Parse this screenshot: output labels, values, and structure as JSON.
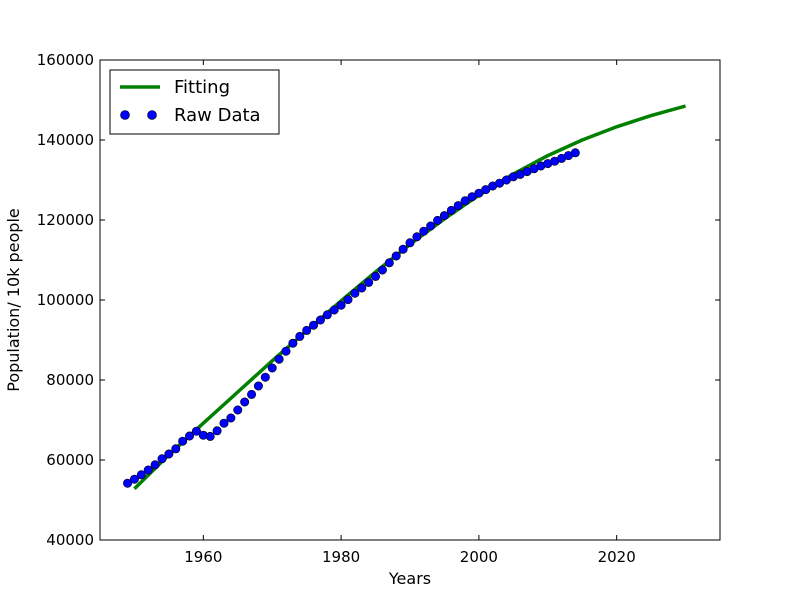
{
  "chart_data": {
    "type": "line",
    "title": "",
    "xlabel": "Years",
    "ylabel": "Population/ 10k people",
    "xlim": [
      1945,
      2035
    ],
    "ylim": [
      40000,
      160000
    ],
    "xticks": [
      1960,
      1980,
      2000,
      2020
    ],
    "yticks": [
      40000,
      60000,
      80000,
      100000,
      120000,
      140000,
      160000
    ],
    "grid": false,
    "legend_position": "top-left",
    "series": [
      {
        "name": "Fitting",
        "kind": "line",
        "color": "#008000",
        "x": [
          1950,
          1955,
          1960,
          1965,
          1970,
          1975,
          1980,
          1985,
          1990,
          1995,
          2000,
          2005,
          2010,
          2015,
          2020,
          2025,
          2030
        ],
        "y": [
          52800,
          61300,
          69200,
          77000,
          84800,
          92300,
          99800,
          107000,
          113900,
          120300,
          126200,
          131500,
          136100,
          140000,
          143300,
          146100,
          148500
        ]
      },
      {
        "name": "Raw Data",
        "kind": "scatter",
        "color": "#0000ff",
        "x": [
          1949,
          1950,
          1951,
          1952,
          1953,
          1954,
          1955,
          1956,
          1957,
          1958,
          1959,
          1960,
          1961,
          1962,
          1963,
          1964,
          1965,
          1966,
          1967,
          1968,
          1969,
          1970,
          1971,
          1972,
          1973,
          1974,
          1975,
          1976,
          1977,
          1978,
          1979,
          1980,
          1981,
          1982,
          1983,
          1984,
          1985,
          1986,
          1987,
          1988,
          1989,
          1990,
          1991,
          1992,
          1993,
          1994,
          1995,
          1996,
          1997,
          1998,
          1999,
          2000,
          2001,
          2002,
          2003,
          2004,
          2005,
          2006,
          2007,
          2008,
          2009,
          2010,
          2011,
          2012,
          2013,
          2014
        ],
        "y": [
          54200,
          55200,
          56300,
          57500,
          58800,
          60300,
          61500,
          62800,
          64700,
          66000,
          67200,
          66200,
          65900,
          67300,
          69200,
          70500,
          72500,
          74500,
          76400,
          78500,
          80700,
          83000,
          85200,
          87200,
          89200,
          90900,
          92400,
          93700,
          95000,
          96300,
          97500,
          98700,
          100100,
          101700,
          103000,
          104400,
          105900,
          107500,
          109300,
          111000,
          112700,
          114300,
          115800,
          117200,
          118500,
          119900,
          121100,
          122400,
          123600,
          124800,
          125800,
          126700,
          127600,
          128500,
          129200,
          130000,
          130800,
          131400,
          132100,
          132800,
          133500,
          134100,
          134700,
          135400,
          136100,
          136800
        ]
      }
    ]
  }
}
